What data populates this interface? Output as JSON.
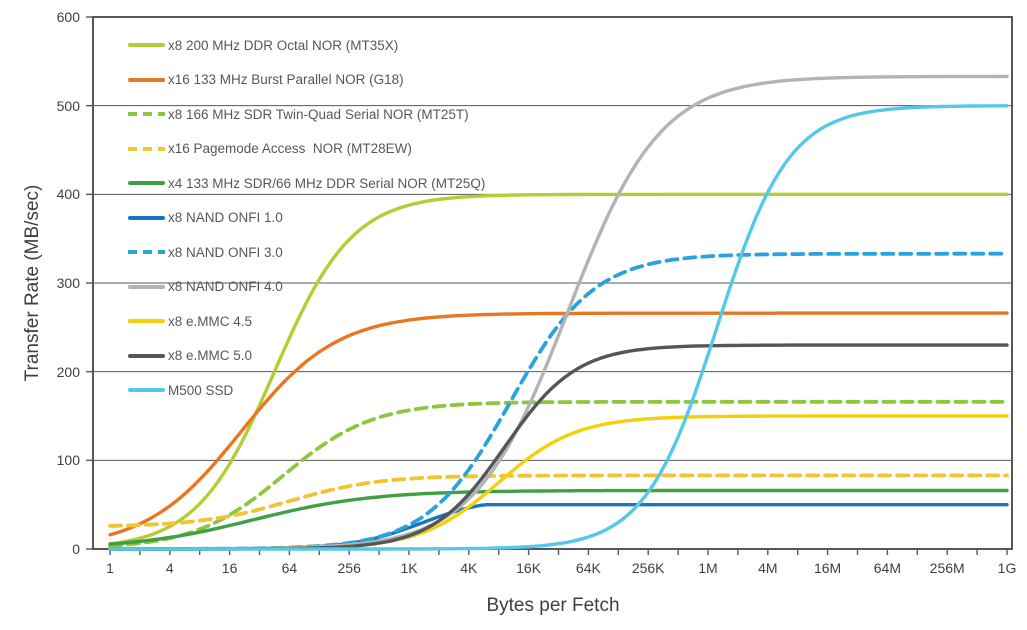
{
  "chart_data": {
    "type": "line",
    "title": "",
    "xlabel": "Bytes per Fetch",
    "ylabel": "Transfer Rate (MB/sec)",
    "x_scale": "log",
    "x_tick_labels": [
      "1",
      "4",
      "16",
      "64",
      "256",
      "1K",
      "4K",
      "16K",
      "64K",
      "256K",
      "1M",
      "4M",
      "16M",
      "64M",
      "256M",
      "1G"
    ],
    "x_tick_values_bytes": [
      1,
      4,
      16,
      64,
      256,
      1024,
      4096,
      16384,
      65536,
      262144,
      1048576,
      4194304,
      16777216,
      67108864,
      268435456,
      1073741824
    ],
    "y_ticks": [
      0,
      100,
      200,
      300,
      400,
      500,
      600
    ],
    "ylim": [
      0,
      600
    ],
    "grid": "horizontal",
    "legend_position": "top-left-inside",
    "frame_color": "#55575a",
    "grid_color": "#55575a",
    "series": [
      {
        "name": "x8 200 MHz DDR Octal NOR (MT35X)",
        "color": "#b5cc34",
        "style": "solid",
        "plateau_mb_per_sec": 400,
        "values_at_x_ticks": [
          6,
          25,
          96,
          238,
          349,
          388,
          397,
          399,
          400,
          400,
          400,
          400,
          400,
          400,
          400,
          400
        ],
        "curve": {
          "lo": 0,
          "hi": 400,
          "mid_log2": 5.5,
          "slope": 1.3
        }
      },
      {
        "name": "x16 133 MHz Burst Parallel NOR (G18)",
        "color": "#e87722",
        "style": "solid",
        "plateau_mb_per_sec": 266,
        "values_at_x_ticks": [
          16,
          49,
          116,
          194,
          241,
          258,
          263,
          265,
          266,
          266,
          266,
          266,
          266,
          266,
          266,
          266
        ],
        "curve": {
          "lo": 0,
          "hi": 266,
          "mid_log2": 4.4,
          "slope": 1.6
        }
      },
      {
        "name": "x8 166 MHz SDR Twin-Quad Serial NOR (MT25T)",
        "color": "#8ec63d",
        "style": "dashed",
        "plateau_mb_per_sec": 166,
        "values_at_x_ticks": [
          3,
          12,
          38,
          89,
          135,
          156,
          163,
          165,
          166,
          166,
          166,
          166,
          166,
          166,
          166,
          166
        ],
        "curve": {
          "lo": 0,
          "hi": 166,
          "mid_log2": 5.8,
          "slope": 1.5
        }
      },
      {
        "name": "x16 Pagemode Access  NOR (MT28EW)",
        "color": "#f2c335",
        "style": "dashed",
        "plateau_mb_per_sec": 83,
        "values_at_x_ticks": [
          26,
          29,
          37,
          54,
          71,
          79,
          82,
          83,
          83,
          83,
          83,
          83,
          83,
          83,
          83,
          83
        ],
        "curve": {
          "lo": 25,
          "hi": 83,
          "mid_log2": 6.0,
          "slope": 1.5
        }
      },
      {
        "name": "x4 133 MHz SDR/66 MHz DDR Serial NOR (MT25Q)",
        "color": "#3fa142",
        "style": "solid",
        "plateau_mb_per_sec": 66,
        "values_at_x_ticks": [
          5,
          13,
          26,
          43,
          55,
          61,
          64,
          65,
          66,
          66,
          66,
          66,
          66,
          66,
          66,
          66
        ],
        "curve": {
          "lo": 0,
          "hi": 66,
          "mid_log2": 4.8,
          "slope": 2.0
        }
      },
      {
        "name": "x8 NAND ONFI 1.0",
        "color": "#1b75bc",
        "style": "solid",
        "plateau_mb_per_sec": 50,
        "values_at_x_ticks": [
          0,
          0,
          0,
          1,
          6,
          24,
          46,
          50,
          50,
          50,
          50,
          50,
          50,
          50,
          50,
          50
        ],
        "curve": {
          "lo": 0,
          "hi": 58,
          "mid_log2": 10.4,
          "slope": 1.15,
          "cap": 50
        }
      },
      {
        "name": "x8 NAND ONFI 3.0",
        "color": "#29a3dc",
        "style": "dashed",
        "plateau_mb_per_sec": 333,
        "values_at_x_ticks": [
          0,
          0,
          0,
          2,
          7,
          27,
          90,
          202,
          288,
          321,
          330,
          332,
          333,
          333,
          333,
          333
        ],
        "curve": {
          "lo": 0,
          "hi": 333,
          "mid_log2": 13.4,
          "slope": 1.4
        }
      },
      {
        "name": "x8 NAND ONFI 4.0",
        "color": "#b2b4b4",
        "style": "solid",
        "plateau_mb_per_sec": 533,
        "values_at_x_ticks": [
          0,
          0,
          0,
          1,
          5,
          17,
          57,
          161,
          326,
          453,
          509,
          526,
          531,
          532,
          533,
          533
        ],
        "curve": {
          "lo": 0,
          "hi": 533,
          "mid_log2": 15.3,
          "slope": 1.55
        }
      },
      {
        "name": "x8 e.MMC 4.5",
        "color": "#f5cf0a",
        "style": "solid",
        "plateau_mb_per_sec": 150,
        "values_at_x_ticks": [
          0,
          0,
          0,
          1,
          3,
          14,
          47,
          103,
          136,
          147,
          149,
          150,
          150,
          150,
          150,
          150
        ],
        "curve": {
          "lo": 0,
          "hi": 150,
          "mid_log2": 13.0,
          "slope": 1.3
        }
      },
      {
        "name": "x8 e.MMC 5.0",
        "color": "#53565a",
        "style": "solid",
        "plateau_mb_per_sec": 230,
        "values_at_x_ticks": [
          0,
          0,
          0,
          1,
          3,
          15,
          62,
          152,
          210,
          226,
          229,
          230,
          230,
          230,
          230,
          230
        ],
        "curve": {
          "lo": 0,
          "hi": 230,
          "mid_log2": 13.2,
          "slope": 1.2
        }
      },
      {
        "name": "M500 SSD",
        "color": "#54c8e8",
        "style": "solid",
        "plateau_mb_per_sec": 500,
        "values_at_x_ticks": [
          0,
          0,
          0,
          0,
          0,
          0,
          0,
          3,
          14,
          64,
          219,
          402,
          478,
          496,
          499,
          500
        ],
        "curve": {
          "lo": 0,
          "hi": 500,
          "mid_log2": 20.3,
          "slope": 1.2
        }
      }
    ]
  }
}
